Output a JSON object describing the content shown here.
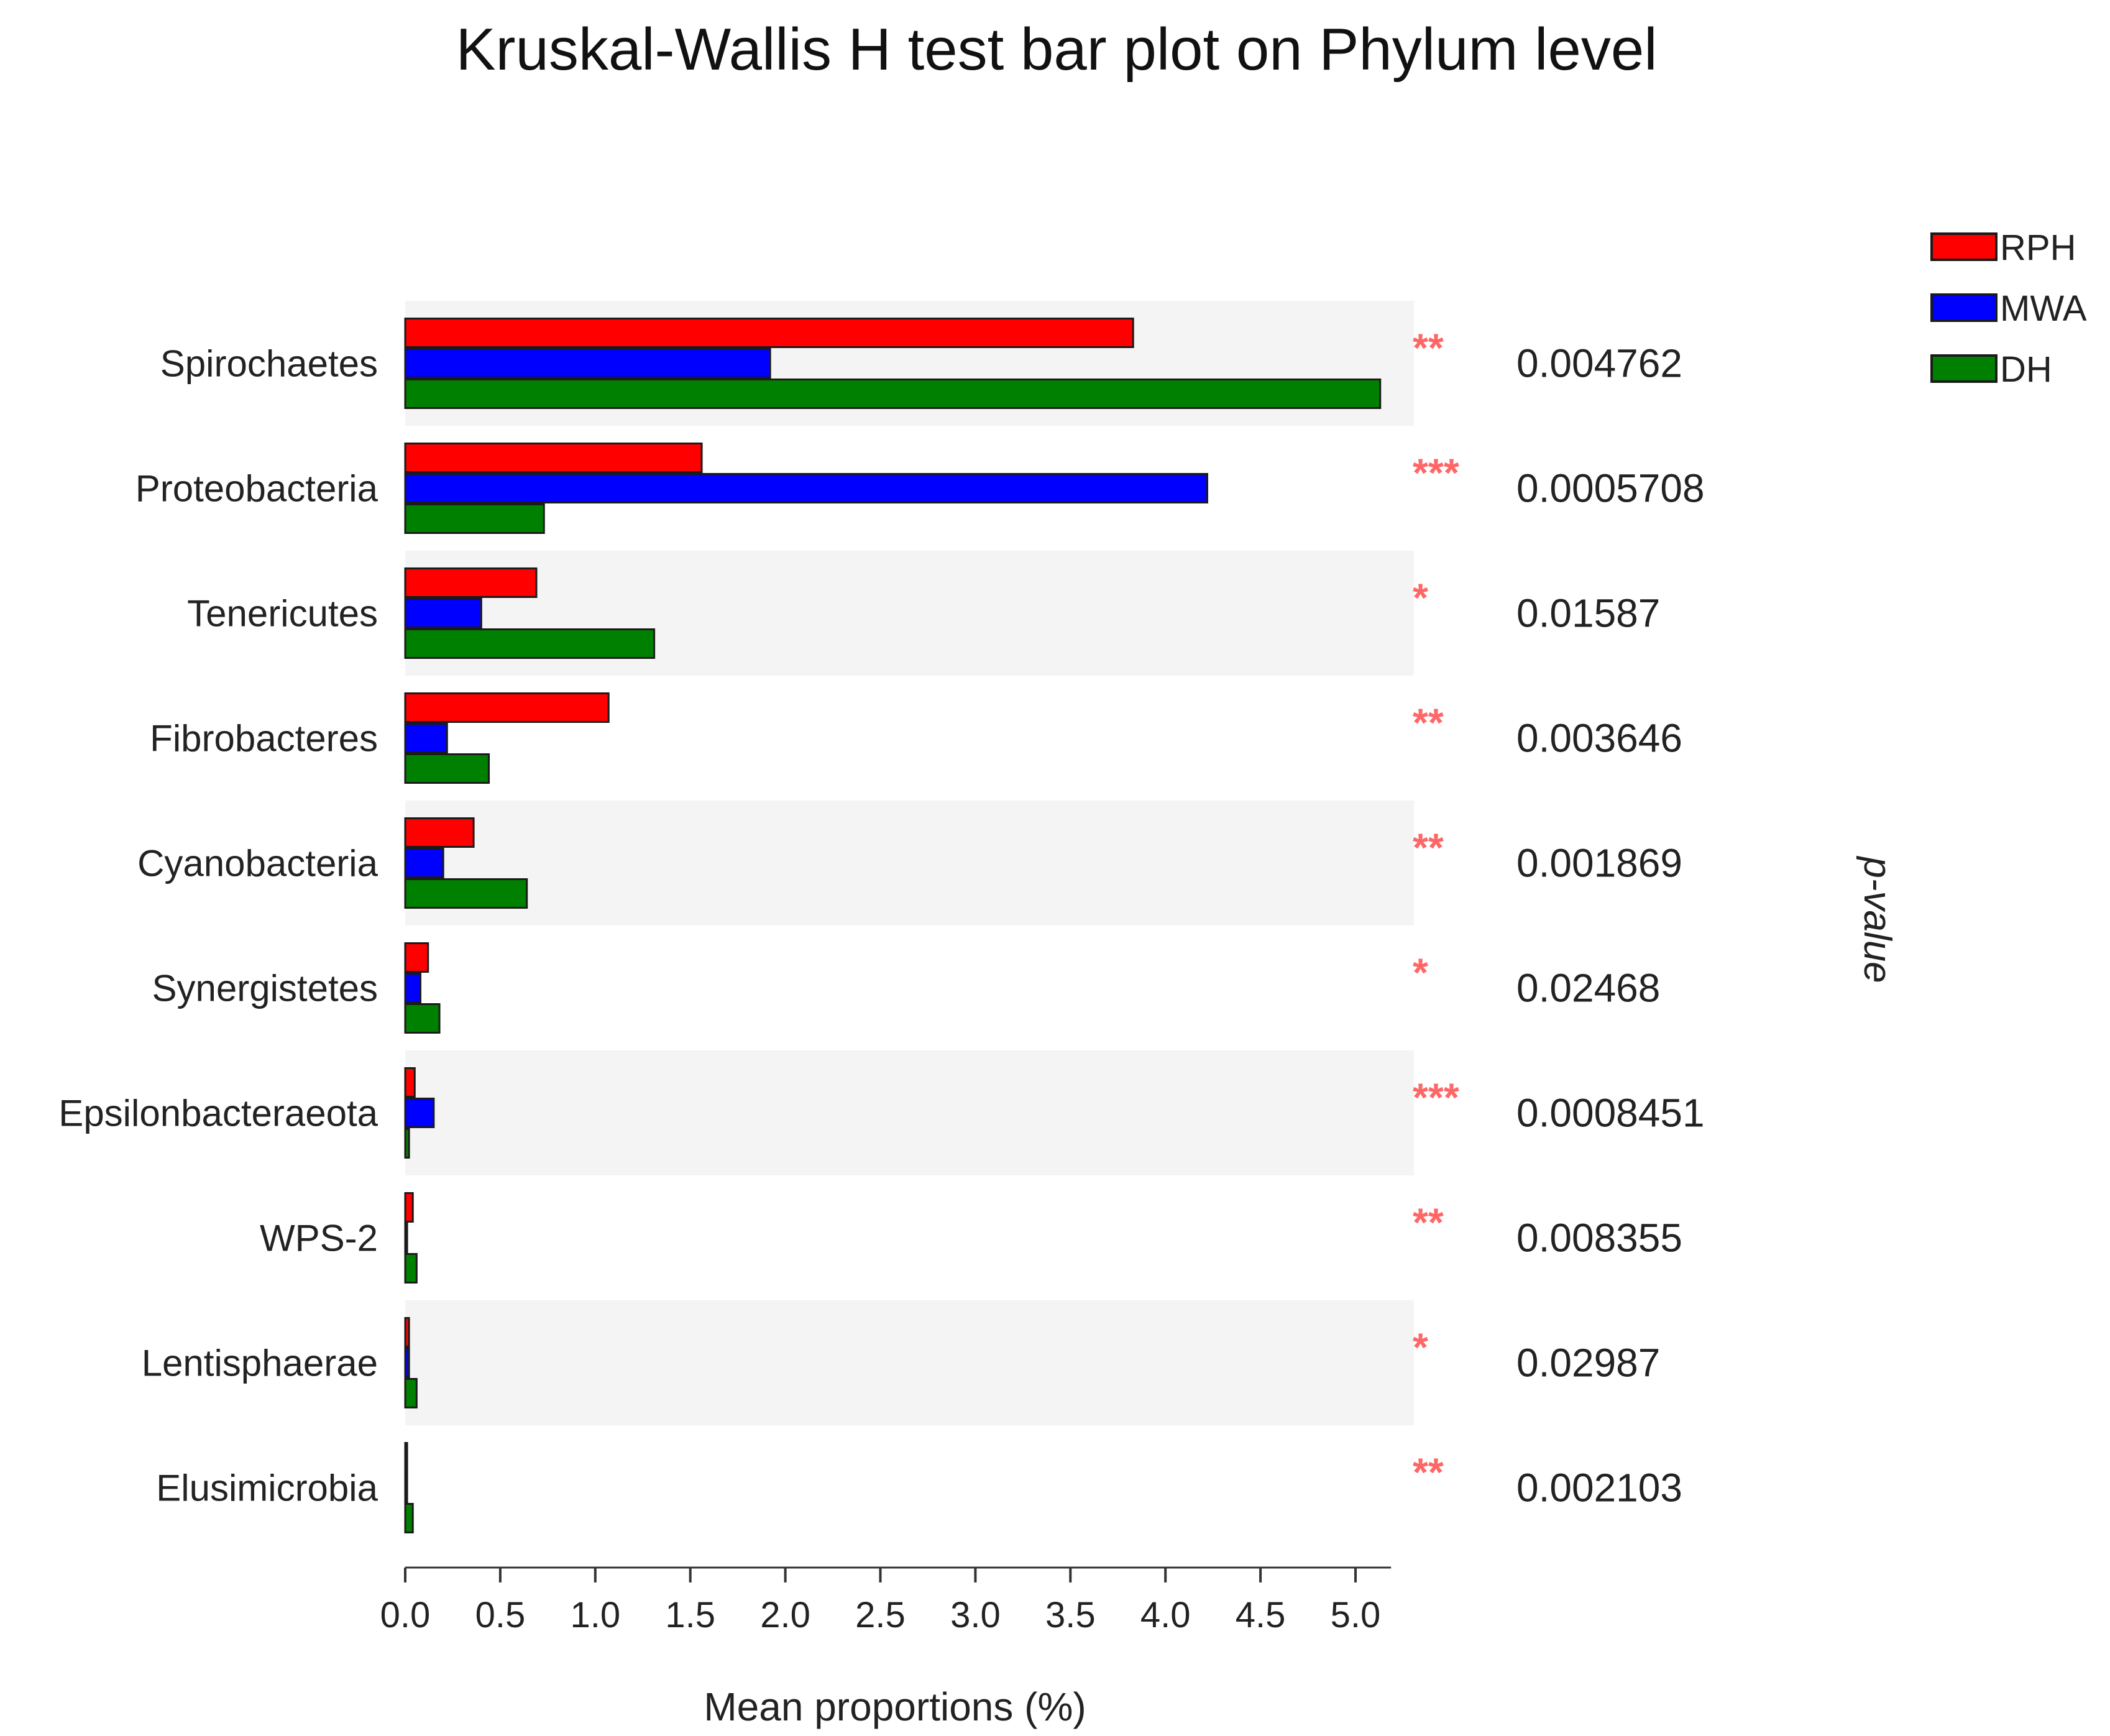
{
  "chart_data": {
    "type": "bar",
    "orientation": "horizontal",
    "title": "Kruskal-Wallis H test bar plot on Phylum level",
    "xlabel": "Mean proportions (%)",
    "ylabel": "",
    "right_axis_label": "p-value",
    "xlim": [
      0,
      5.2
    ],
    "xticks": [
      "0.0",
      "0.5",
      "1.0",
      "1.5",
      "2.0",
      "2.5",
      "3.0",
      "3.5",
      "4.0",
      "4.5",
      "5.0"
    ],
    "legend_position": "top-right",
    "alternating_row_background": true,
    "categories": [
      "Spirochaetes",
      "Proteobacteria",
      "Tenericutes",
      "Fibrobacteres",
      "Cyanobacteria",
      "Synergistetes",
      "Epsilonbacteraeota",
      "WPS-2",
      "Lentisphaerae",
      "Elusimicrobia"
    ],
    "series": [
      {
        "name": "RPH",
        "color": "#ff0000",
        "values": [
          3.83,
          1.56,
          0.69,
          1.07,
          0.36,
          0.12,
          0.05,
          0.04,
          0.02,
          0.01
        ]
      },
      {
        "name": "MWA",
        "color": "#0000ff",
        "values": [
          1.92,
          4.22,
          0.4,
          0.22,
          0.2,
          0.08,
          0.15,
          0.01,
          0.02,
          0.01
        ]
      },
      {
        "name": "DH",
        "color": "#008000",
        "values": [
          5.13,
          0.73,
          1.31,
          0.44,
          0.64,
          0.18,
          0.02,
          0.06,
          0.06,
          0.04
        ]
      }
    ],
    "significance": [
      "**",
      "***",
      "*",
      "**",
      "**",
      "*",
      "***",
      "**",
      "*",
      "**"
    ],
    "p_values": [
      "0.004762",
      "0.0005708",
      "0.01587",
      "0.003646",
      "0.001869",
      "0.02468",
      "0.0008451",
      "0.008355",
      "0.02987",
      "0.002103"
    ]
  }
}
